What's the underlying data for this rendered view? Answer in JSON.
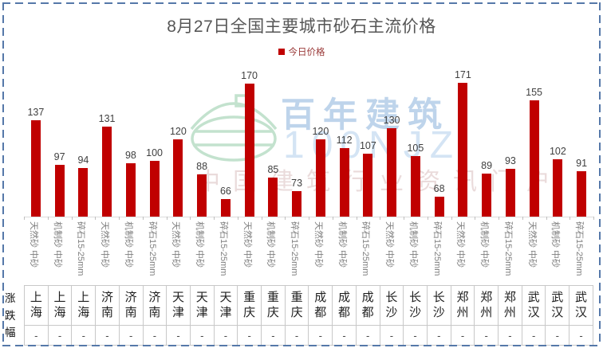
{
  "frame": {
    "border_color": "#5578a9"
  },
  "chart": {
    "title": "8月27日全国主要城市砂石主流价格",
    "legend": {
      "label": "今日价格",
      "marker_color": "#C00000"
    }
  },
  "chart_data": {
    "type": "bar",
    "title": "8月27日全国主要城市砂石主流价格",
    "legend": [
      "今日价格"
    ],
    "bar_color": "#C00000",
    "grid": false,
    "y_axis_hidden": true,
    "data_labels": true,
    "legend_position": "top",
    "ylim": [
      50,
      190
    ],
    "group_labels": [
      "上海",
      "上海",
      "上海",
      "济南",
      "济南",
      "济南",
      "天津",
      "天津",
      "天津",
      "重庆",
      "重庆",
      "重庆",
      "成都",
      "成都",
      "成都",
      "长沙",
      "长沙",
      "长沙",
      "郑州",
      "郑州",
      "郑州",
      "武汉",
      "武汉",
      "武汉"
    ],
    "x_labels": [
      "天然砂 中砂",
      "机制砂 中砂",
      "碎石15-25mm",
      "天然砂 中砂",
      "机制砂 中砂",
      "碎石15-25mm",
      "天然砂 中砂",
      "机制砂 中砂",
      "碎石15-25mm",
      "天然砂 中砂",
      "机制砂 中砂",
      "碎石15-25mm",
      "天然砂 中砂",
      "机制砂 中砂",
      "碎石15-25mm",
      "天然砂 中砂",
      "机制砂 中砂",
      "碎石15-25mm",
      "天然砂 中砂",
      "机制砂 中砂",
      "碎石15-25mm",
      "天然砂 中砂",
      "机制砂 中砂",
      "碎石15-25mm"
    ],
    "values": [
      137,
      97,
      94,
      131,
      98,
      100,
      120,
      88,
      66,
      170,
      85,
      73,
      120,
      112,
      107,
      130,
      105,
      68,
      171,
      89,
      93,
      155,
      102,
      91
    ]
  },
  "table": {
    "row_header": "涨跌幅",
    "cities": [
      "上海",
      "上海",
      "上海",
      "济南",
      "济南",
      "济南",
      "天津",
      "天津",
      "天津",
      "重庆",
      "重庆",
      "重庆",
      "成都",
      "成都",
      "成都",
      "长沙",
      "长沙",
      "长沙",
      "郑州",
      "郑州",
      "郑州",
      "武汉",
      "武汉",
      "武汉"
    ],
    "changes": [
      "-",
      "-",
      "-",
      "-",
      "-",
      "-",
      "-",
      "-",
      "-",
      "-",
      "-",
      "-",
      "-",
      "-",
      "-",
      "-",
      "-",
      "-",
      "-",
      "-",
      "-",
      "-",
      "-",
      "-"
    ]
  },
  "watermark": {
    "brand": "百年建筑",
    "code": "100NJZ",
    "tagline": "中国建筑行业资讯门户",
    "logo_color": "#9ccfae"
  }
}
